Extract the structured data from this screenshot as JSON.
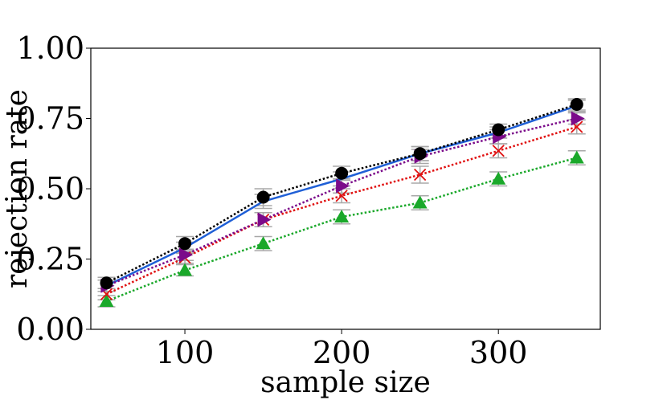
{
  "chart_data": {
    "type": "line",
    "title": "",
    "xlabel": "sample size",
    "ylabel": "rejection rate",
    "x": [
      50,
      100,
      150,
      200,
      250,
      300,
      350
    ],
    "xlim": [
      40,
      365
    ],
    "ylim": [
      0,
      1
    ],
    "xticks": [
      100,
      200,
      300
    ],
    "xtick_labels": [
      "100",
      "200",
      "300"
    ],
    "yticks": [
      0,
      0.25,
      0.5,
      0.75,
      1
    ],
    "ytick_labels": [
      "0.00",
      "0.25",
      "0.50",
      "0.75",
      "1.00"
    ],
    "grid": false,
    "legend": "none",
    "series": [
      {
        "name": "blue",
        "color": "#1f5fd6",
        "marker": "none",
        "values": [
          0.155,
          0.29,
          0.455,
          0.535,
          0.625,
          0.7,
          0.795
        ],
        "errors": [
          0.02,
          0.02,
          0.025,
          0.025,
          0.025,
          0.02,
          0.02
        ]
      },
      {
        "name": "green",
        "color": "#1aa82a",
        "marker": "triangle-up",
        "values": [
          0.1,
          0.21,
          0.305,
          0.4,
          0.45,
          0.535,
          0.61
        ],
        "errors": [
          0.02,
          0.02,
          0.025,
          0.025,
          0.025,
          0.025,
          0.025
        ]
      },
      {
        "name": "red",
        "color": "#e01010",
        "marker": "x",
        "values": [
          0.125,
          0.255,
          0.39,
          0.475,
          0.55,
          0.635,
          0.72
        ],
        "errors": [
          0.02,
          0.02,
          0.025,
          0.025,
          0.03,
          0.025,
          0.025
        ]
      },
      {
        "name": "purple",
        "color": "#7b0a8a",
        "marker": "triangle-right",
        "values": [
          0.155,
          0.265,
          0.39,
          0.51,
          0.615,
          0.685,
          0.75
        ],
        "errors": [
          0.02,
          0.02,
          0.025,
          0.025,
          0.025,
          0.025,
          0.02
        ]
      },
      {
        "name": "black",
        "color": "#000000",
        "marker": "circle",
        "values": [
          0.165,
          0.305,
          0.47,
          0.555,
          0.625,
          0.71,
          0.8
        ],
        "errors": [
          0.02,
          0.025,
          0.03,
          0.025,
          0.025,
          0.02,
          0.02
        ]
      }
    ]
  }
}
